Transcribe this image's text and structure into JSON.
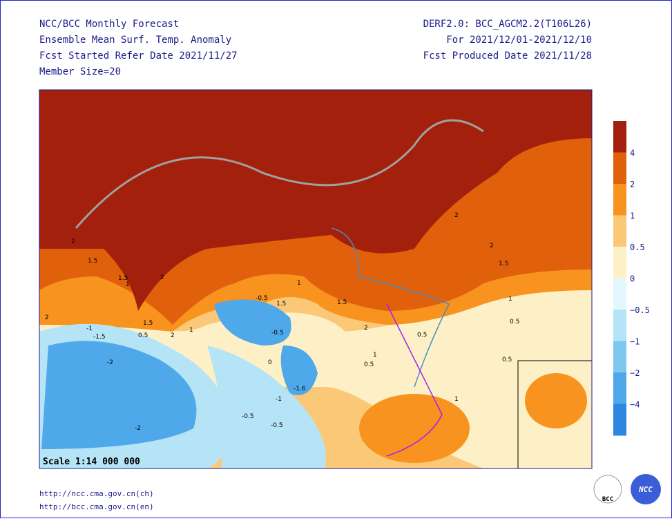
{
  "header": {
    "left": [
      "NCC/BCC Monthly Forecast",
      "Ensemble Mean Surf. Temp. Anomaly",
      "Fcst Started Refer Date 2021/11/27",
      "Member Size=20"
    ],
    "right": [
      "DERF2.0: BCC_AGCM2.2(T106L26)",
      "For 2021/12/01-2021/12/10",
      "Fcst Produced Date 2021/11/28"
    ]
  },
  "map": {
    "scale": "Scale 1:14 000 000",
    "contour_labels": [
      "2",
      "1.5",
      "1",
      "2",
      "2",
      "1.5",
      "1",
      "0.5",
      "1.5",
      "2",
      "1",
      "0.5",
      "-1",
      "-1.5",
      "-2",
      "-2",
      "-0.5",
      "-0.5",
      "-1",
      "-1.6",
      "-0.5",
      "1.5",
      "2",
      "2",
      "1.5",
      "1",
      "0.5",
      "0.5",
      "1",
      "0.5",
      "2",
      "1.5",
      "1",
      "-0.5",
      "0"
    ]
  },
  "colorbar": {
    "colors": [
      "#a3200c",
      "#e0600c",
      "#f7931e",
      "#fbc878",
      "#fdf0c6",
      "#e2f8fe",
      "#b6e4f7",
      "#7ec8f0",
      "#4ea8ea",
      "#2d86e0"
    ],
    "labels": [
      "4",
      "2",
      "1",
      "0.5",
      "0",
      "−0.5",
      "−1",
      "−2",
      "−4"
    ]
  },
  "footer": {
    "links": [
      "http://ncc.cma.gov.cn(ch)",
      "http://bcc.cma.gov.cn(en)"
    ],
    "logos": [
      "BCC",
      "NCC"
    ]
  }
}
